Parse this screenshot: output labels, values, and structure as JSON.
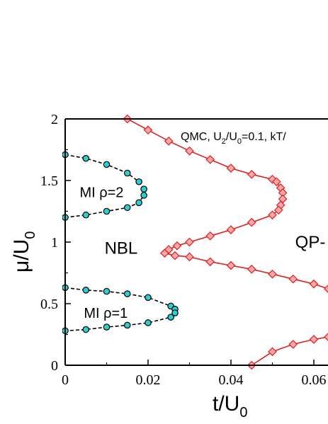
{
  "chart_data": {
    "type": "scatter",
    "xlabel": "t/U",
    "xlabel_sub": "0",
    "ylabel": "μ/U",
    "ylabel_sub": "0",
    "xlim": [
      0,
      0.063
    ],
    "ylim": [
      0,
      2
    ],
    "x_ticks": [
      0,
      0.02,
      0.04,
      0.06
    ],
    "x_tick_labels": [
      "0",
      "0.02",
      "0.04",
      "0.06"
    ],
    "y_ticks": [
      0,
      0.5,
      1,
      1.5,
      2
    ],
    "y_tick_labels": [
      "0",
      "0.5",
      "1",
      "1.5",
      "2"
    ],
    "annotation": {
      "prefix": "QMC, U",
      "s1": "2",
      "mid": "/U",
      "s2": "0",
      "suffix": "=0.1, kT/"
    },
    "region_labels": [
      {
        "key": "mi2",
        "text": "MI ρ=2",
        "x": 0.0035,
        "y": 1.41
      },
      {
        "key": "nbl",
        "text": "NBL",
        "x": 0.0095,
        "y": 0.95
      },
      {
        "key": "mi1",
        "text": "MI ρ=1",
        "x": 0.0045,
        "y": 0.43
      },
      {
        "key": "qp",
        "text": "QP-",
        "x": 0.0555,
        "y": 1.0
      }
    ],
    "series": [
      {
        "key": "mi2",
        "marker": "circle",
        "line": "dashed",
        "color": "#000000",
        "fill": "#2ad0d0",
        "points": [
          [
            0.0,
            1.71
          ],
          [
            0.005,
            1.68
          ],
          [
            0.01,
            1.63
          ],
          [
            0.015,
            1.56
          ],
          [
            0.0178,
            1.49
          ],
          [
            0.019,
            1.43
          ],
          [
            0.019,
            1.38
          ],
          [
            0.0178,
            1.32
          ],
          [
            0.015,
            1.28
          ],
          [
            0.01,
            1.25
          ],
          [
            0.005,
            1.22
          ],
          [
            0.0,
            1.2
          ]
        ]
      },
      {
        "key": "mi1",
        "marker": "circle",
        "line": "dashed",
        "color": "#000000",
        "fill": "#2ad0d0",
        "points": [
          [
            0.0,
            0.63
          ],
          [
            0.005,
            0.61
          ],
          [
            0.01,
            0.6
          ],
          [
            0.015,
            0.58
          ],
          [
            0.02,
            0.55
          ],
          [
            0.0255,
            0.48
          ],
          [
            0.0265,
            0.455
          ],
          [
            0.0265,
            0.425
          ],
          [
            0.0255,
            0.39
          ],
          [
            0.02,
            0.345
          ],
          [
            0.015,
            0.325
          ],
          [
            0.01,
            0.31
          ],
          [
            0.005,
            0.29
          ],
          [
            0.0,
            0.28
          ]
        ]
      },
      {
        "key": "qp-upper",
        "marker": "diamond",
        "line": "solid",
        "color": "#e02020",
        "fill": "#f8a8a8",
        "points": [
          [
            0.015,
            2.0
          ],
          [
            0.02,
            1.91
          ],
          [
            0.025,
            1.82
          ],
          [
            0.03,
            1.74
          ],
          [
            0.035,
            1.67
          ],
          [
            0.04,
            1.6
          ],
          [
            0.045,
            1.55
          ],
          [
            0.05,
            1.51
          ],
          [
            0.051,
            1.49
          ],
          [
            0.052,
            1.44
          ],
          [
            0.0525,
            1.4
          ],
          [
            0.0525,
            1.35
          ],
          [
            0.052,
            1.3
          ],
          [
            0.0515,
            1.26
          ],
          [
            0.05,
            1.22
          ],
          [
            0.045,
            1.16
          ],
          [
            0.04,
            1.1
          ],
          [
            0.035,
            1.05
          ],
          [
            0.03,
            1.0
          ],
          [
            0.027,
            0.97
          ],
          [
            0.025,
            0.94
          ],
          [
            0.024,
            0.91
          ],
          [
            0.0265,
            0.89
          ],
          [
            0.03,
            0.88
          ],
          [
            0.035,
            0.84
          ],
          [
            0.04,
            0.81
          ],
          [
            0.045,
            0.78
          ],
          [
            0.05,
            0.74
          ],
          [
            0.055,
            0.7
          ],
          [
            0.06,
            0.66
          ],
          [
            0.0635,
            0.62
          ]
        ]
      },
      {
        "key": "qp-lower",
        "marker": "diamond",
        "line": "solid",
        "color": "#e02020",
        "fill": "#f8a8a8",
        "points": [
          [
            0.045,
            0.0
          ],
          [
            0.05,
            0.11
          ],
          [
            0.055,
            0.17
          ],
          [
            0.06,
            0.21
          ],
          [
            0.0635,
            0.23
          ]
        ]
      }
    ]
  }
}
